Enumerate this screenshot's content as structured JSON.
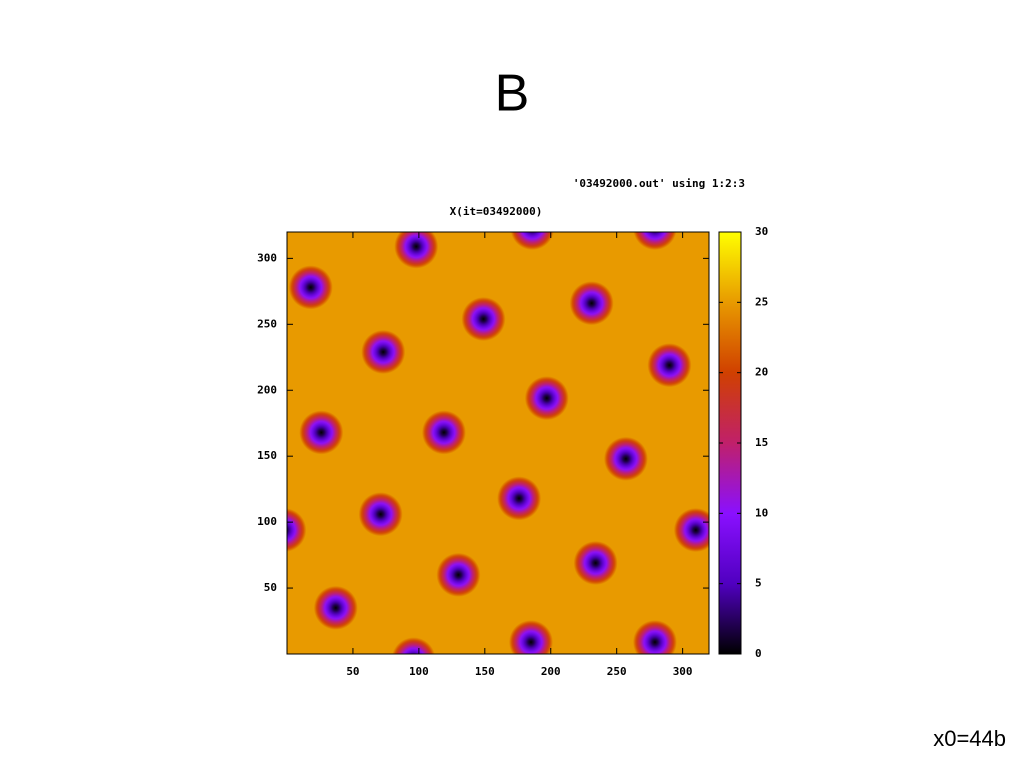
{
  "slide_title": "B",
  "footer": "x0=44b",
  "chart_data": {
    "type": "heatmap",
    "title": "X(it=03492000)",
    "legend": "'03492000.out' using 1:2:3",
    "xlim": [
      0,
      320
    ],
    "ylim": [
      0,
      320
    ],
    "xticks": [
      50,
      100,
      150,
      200,
      250,
      300
    ],
    "yticks": [
      50,
      100,
      150,
      200,
      250,
      300
    ],
    "background_value": 25,
    "spots": {
      "x": [
        98,
        186,
        279,
        18,
        231,
        149,
        73,
        290,
        197,
        26,
        119,
        257,
        176,
        71,
        -2,
        310,
        130,
        234,
        37,
        185,
        279,
        96
      ],
      "y": [
        309,
        323,
        323,
        278,
        266,
        254,
        229,
        219,
        194,
        168,
        168,
        148,
        118,
        106,
        94,
        94,
        60,
        69,
        35,
        9,
        9,
        -4
      ]
    },
    "colorbar": {
      "lim": [
        0,
        30
      ],
      "ticks": [
        0,
        5,
        10,
        15,
        20,
        25,
        30
      ],
      "palette": [
        "#000000",
        "#5000c0",
        "#8a10ff",
        "#c0206a",
        "#d04000",
        "#e89a00",
        "#ffff00"
      ]
    }
  }
}
